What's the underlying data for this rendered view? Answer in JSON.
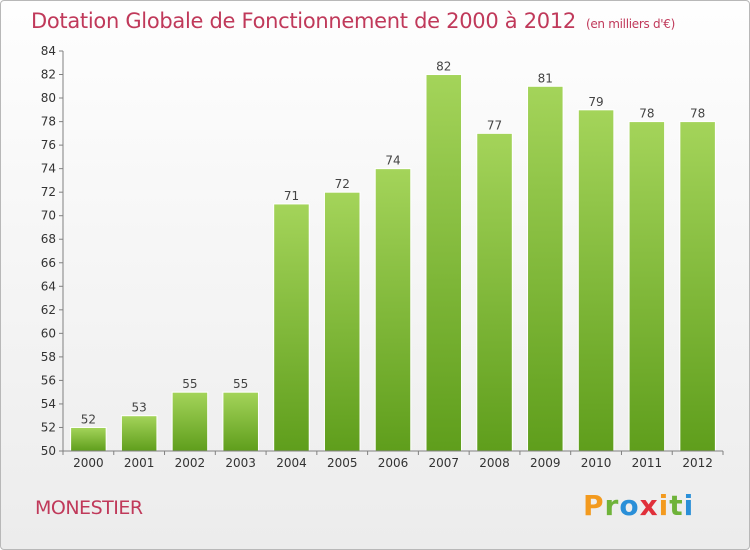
{
  "title": "Dotation Globale de Fonctionnement de 2000 à 2012",
  "subtitle": "(en milliers d'€)",
  "city": "MONESTIER",
  "brand": {
    "letters": [
      "P",
      "r",
      "o",
      "x",
      "i",
      "t",
      "i"
    ],
    "colors": [
      "#f39a1e",
      "#6fb33a",
      "#2a8fd8",
      "#e0303a",
      "#f39a1e",
      "#6fb33a",
      "#2a8fd8"
    ]
  },
  "colors": {
    "accent": "#c0395a",
    "bar_light": "#a4d45a",
    "bar_dark": "#5f9e1c",
    "axis": "#808080"
  },
  "chart_data": {
    "type": "bar",
    "title": "Dotation Globale de Fonctionnement de 2000 à 2012",
    "subtitle": "(en milliers d'€)",
    "xlabel": "",
    "ylabel": "",
    "categories": [
      "2000",
      "2001",
      "2002",
      "2003",
      "2004",
      "2005",
      "2006",
      "2007",
      "2008",
      "2009",
      "2010",
      "2011",
      "2012"
    ],
    "values": [
      52,
      53,
      55,
      55,
      71,
      72,
      74,
      82,
      77,
      81,
      79,
      78,
      78
    ],
    "ylim": [
      50,
      84
    ],
    "yticks": [
      50,
      52,
      54,
      56,
      58,
      60,
      62,
      64,
      66,
      68,
      70,
      72,
      74,
      76,
      78,
      80,
      82,
      84
    ],
    "grid": false,
    "legend": "none",
    "data_labels": true
  }
}
